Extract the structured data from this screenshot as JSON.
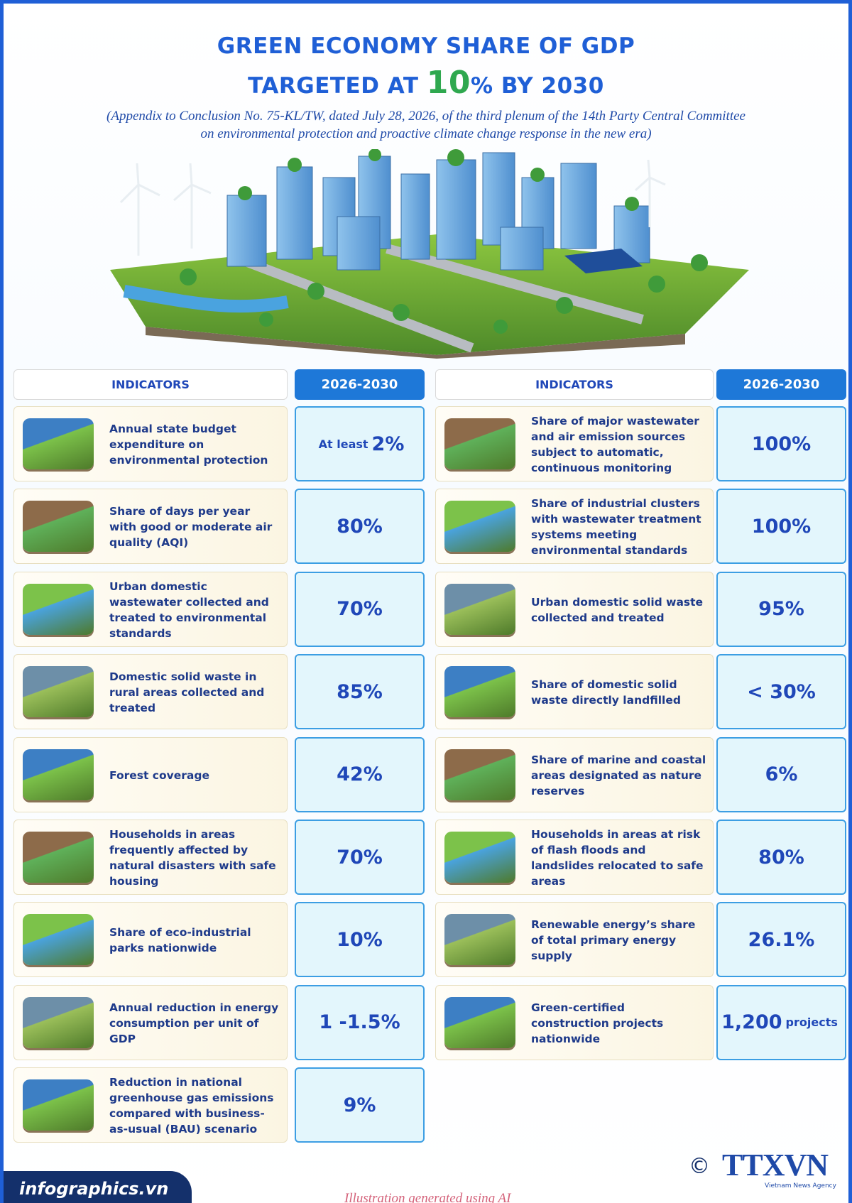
{
  "header": {
    "title_line1": "GREEN ECONOMY SHARE OF GDP",
    "title_line2_prefix": "TARGETED AT",
    "title_line2_highlight": "10",
    "title_line2_suffix": "% BY 2030",
    "subtitle_line1": "(Appendix to Conclusion No. 75-KL/TW, dated July 28, 2026, of the third plenum of the 14th Party Central Committee",
    "subtitle_line2": "on environmental protection and proactive climate change response in the new era)"
  },
  "tables": [
    {
      "header_indicator": "INDICATORS",
      "header_period": "2026-2030",
      "rows": [
        {
          "indicator": "Annual state budget expenditure on environmental protection",
          "prefix": "At least",
          "value": "2%"
        },
        {
          "indicator": "Share of days per year with good or moderate air quality (AQI)",
          "value": "80%"
        },
        {
          "indicator": "Urban domestic wastewater collected and treated to environmental standards",
          "value": "70%"
        },
        {
          "indicator": "Domestic solid waste in rural areas collected and treated",
          "value": "85%"
        },
        {
          "indicator": "Forest coverage",
          "value": "42%"
        },
        {
          "indicator": "Households in areas frequently affected by natural disasters with safe housing",
          "value": "70%"
        },
        {
          "indicator": "Share of eco-industrial parks nationwide",
          "value": "10%"
        },
        {
          "indicator": "Annual reduction in energy consumption per unit of GDP",
          "value": "1 -1.5%"
        },
        {
          "indicator": "Reduction in national greenhouse gas emissions compared with business-as-usual (BAU) scenario",
          "value": "9%"
        }
      ]
    },
    {
      "header_indicator": "INDICATORS",
      "header_period": "2026-2030",
      "rows": [
        {
          "indicator": "Share of major wastewater and air emission sources subject to automatic, continuous monitoring",
          "value": "100%"
        },
        {
          "indicator": "Share of industrial clusters with wastewater treatment systems meeting environmental standards",
          "value": "100%"
        },
        {
          "indicator": "Urban domestic solid waste collected and treated",
          "value": "95%"
        },
        {
          "indicator": "Share of domestic solid waste directly landfilled",
          "value": "< 30%"
        },
        {
          "indicator": "Share of marine and coastal areas designated as nature reserves",
          "value": "6%"
        },
        {
          "indicator": "Households in areas at risk of flash floods and landslides relocated to safe areas",
          "value": "80%"
        },
        {
          "indicator": "Renewable energy’s share of total primary energy supply",
          "value": "26.1%"
        },
        {
          "indicator": "Green-certified construction projects nationwide",
          "value": "1,200",
          "suffix": "projects"
        }
      ]
    }
  ],
  "footer": {
    "site": "infographics.vn",
    "note": "Illustration generated using AI",
    "copyright": "©",
    "agency": "TTXVN",
    "agency_full": "Vietnam News Agency"
  }
}
